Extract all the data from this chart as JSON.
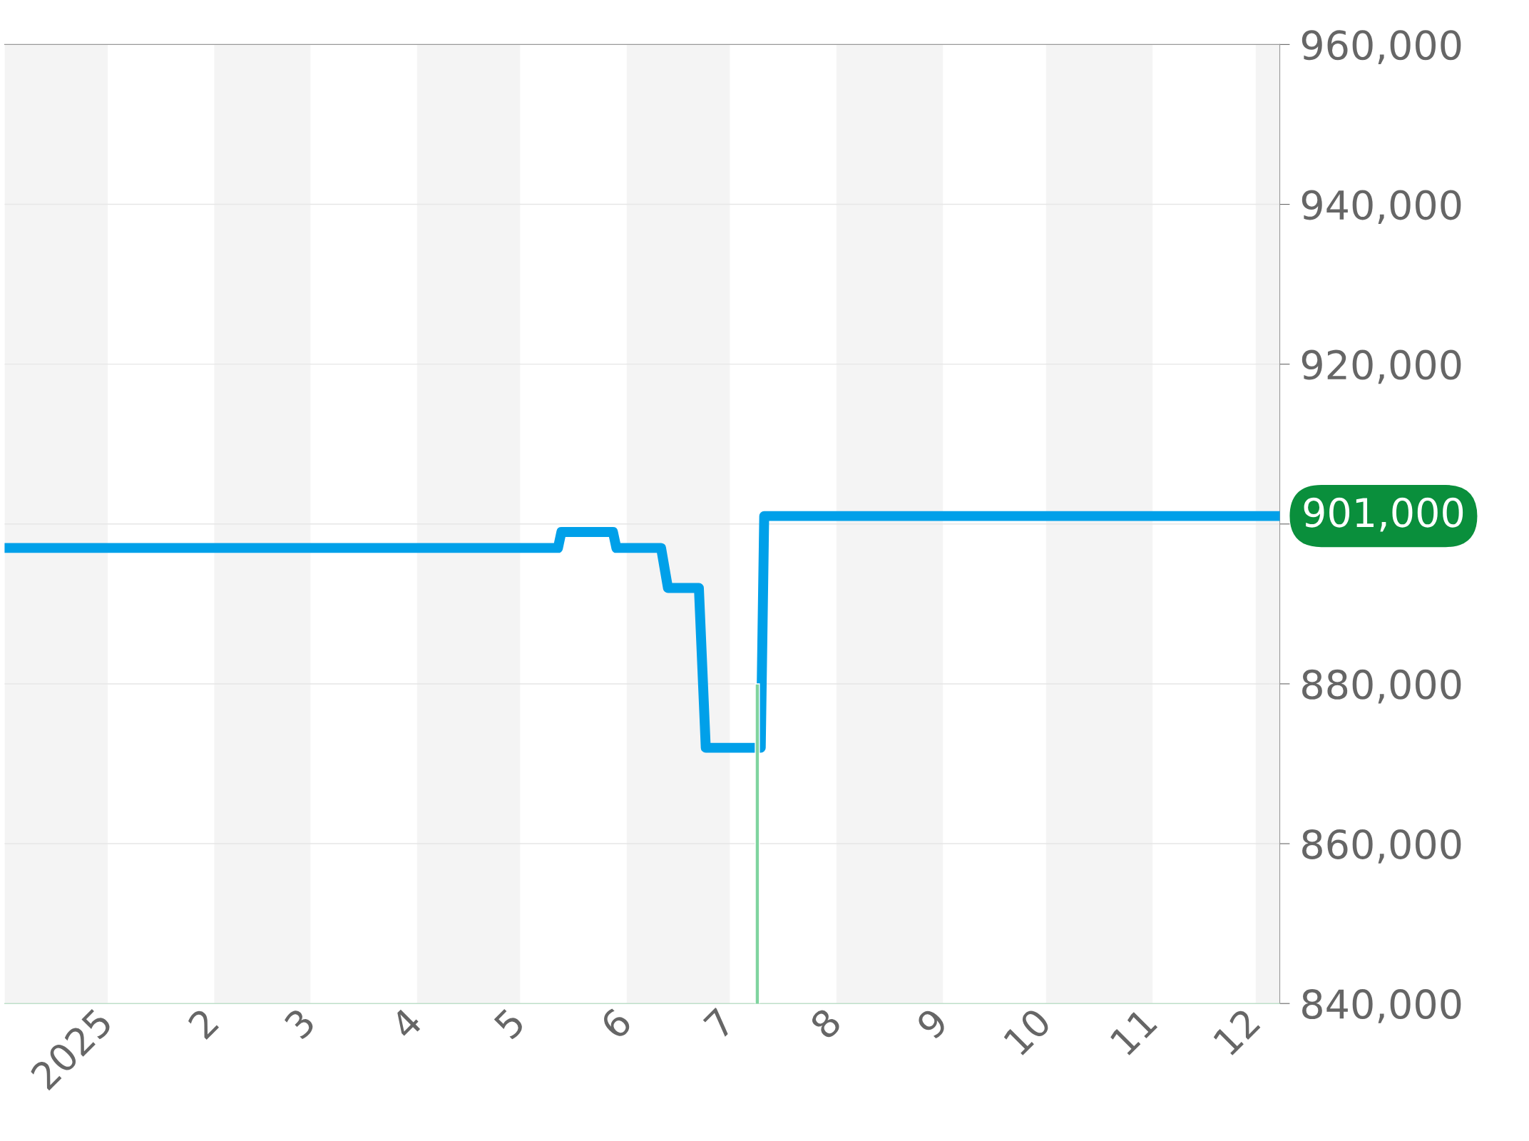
{
  "chart_data": {
    "type": "line",
    "xlim": [
      "2024-12-02",
      "2025-12-08"
    ],
    "ylim": [
      840000,
      960000
    ],
    "xticks": [
      {
        "value": "2025-01-01",
        "label": "2025"
      },
      {
        "value": "2025-02-01",
        "label": "2"
      },
      {
        "value": "2025-03-01",
        "label": "3"
      },
      {
        "value": "2025-04-01",
        "label": "4"
      },
      {
        "value": "2025-05-01",
        "label": "5"
      },
      {
        "value": "2025-06-01",
        "label": "6"
      },
      {
        "value": "2025-07-01",
        "label": "7"
      },
      {
        "value": "2025-08-01",
        "label": "8"
      },
      {
        "value": "2025-09-01",
        "label": "9"
      },
      {
        "value": "2025-10-01",
        "label": "10"
      },
      {
        "value": "2025-11-01",
        "label": "11"
      },
      {
        "value": "2025-12-01",
        "label": "12"
      }
    ],
    "yticks": [
      {
        "value": 840000,
        "label": "840,000"
      },
      {
        "value": 860000,
        "label": "860,000"
      },
      {
        "value": 880000,
        "label": "880,000"
      },
      {
        "value": 900000,
        "label": null
      },
      {
        "value": 920000,
        "label": "920,000"
      },
      {
        "value": 940000,
        "label": "940,000"
      },
      {
        "value": 960000,
        "label": "960,000"
      }
    ],
    "grid": "y",
    "legend": false,
    "marker": "none",
    "line_style": "solid",
    "series": [
      {
        "color": "#00a0e9",
        "x": [
          "2024-12-02",
          "2025-05-12",
          "2025-05-13",
          "2025-05-28",
          "2025-05-29",
          "2025-06-11",
          "2025-06-13",
          "2025-06-22",
          "2025-06-24",
          "2025-07-10",
          "2025-07-11",
          "2025-12-08"
        ],
        "values": [
          897000,
          897000,
          899000,
          899000,
          897000,
          897000,
          892000,
          892000,
          872000,
          872000,
          901000,
          901000
        ]
      },
      {
        "type": "bar",
        "color": "#7fd49f",
        "x": [
          "2025-07-09"
        ],
        "values": [
          880000
        ]
      }
    ],
    "bands": [
      {
        "axis": "x",
        "from": "2024-12-02",
        "to": "2025-01-01",
        "color": "#f4f4f4"
      },
      {
        "axis": "x",
        "from": "2025-02-01",
        "to": "2025-03-01",
        "color": "#f4f4f4"
      },
      {
        "axis": "x",
        "from": "2025-04-01",
        "to": "2025-05-01",
        "color": "#f4f4f4"
      },
      {
        "axis": "x",
        "from": "2025-06-01",
        "to": "2025-07-01",
        "color": "#f4f4f4"
      },
      {
        "axis": "x",
        "from": "2025-08-01",
        "to": "2025-09-01",
        "color": "#f4f4f4"
      },
      {
        "axis": "x",
        "from": "2025-10-01",
        "to": "2025-11-01",
        "color": "#f4f4f4"
      },
      {
        "axis": "x",
        "from": "2025-12-01",
        "to": "2025-12-08",
        "color": "#f4f4f4"
      }
    ],
    "annotations": [
      {
        "text": "901,000",
        "x": "2025-12-08",
        "y": 901000
      }
    ]
  }
}
